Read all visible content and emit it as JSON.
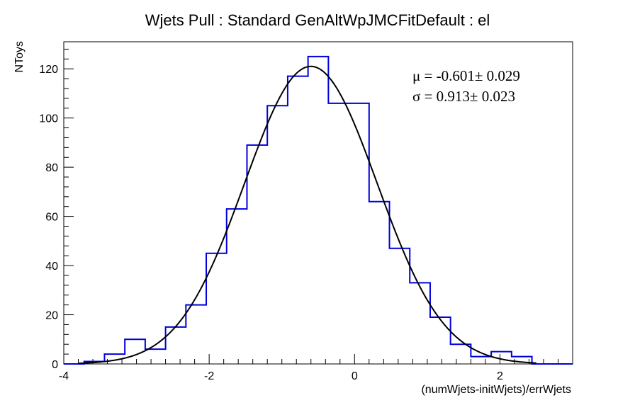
{
  "chart_data": {
    "type": "histogram",
    "title": "Wjets Pull : Standard GenAltWpJMCFitDefault : el",
    "xlabel": "(numWjets-initWjets)/errWjets",
    "ylabel": "NToys",
    "xlim": [
      -4,
      3
    ],
    "ylim": [
      0,
      131
    ],
    "x_ticks": [
      -4,
      -2,
      0,
      2
    ],
    "x_tick_labels": [
      "-4",
      "-2",
      "0",
      "2"
    ],
    "y_ticks": [
      0,
      20,
      40,
      60,
      80,
      100,
      120
    ],
    "y_tick_labels": [
      "0",
      "20",
      "40",
      "60",
      "80",
      "100",
      "120"
    ],
    "bin_edges": [
      -4.0,
      -3.72,
      -3.44,
      -3.16,
      -2.88,
      -2.6,
      -2.32,
      -2.04,
      -1.76,
      -1.48,
      -1.2,
      -0.92,
      -0.64,
      -0.36,
      -0.08,
      0.2,
      0.48,
      0.76,
      1.04,
      1.32,
      1.6,
      1.88,
      2.16,
      2.44,
      2.72,
      3.0
    ],
    "counts": [
      0,
      1,
      4,
      10,
      6,
      15,
      24,
      45,
      63,
      89,
      105,
      117,
      125,
      106,
      106,
      66,
      47,
      33,
      19,
      8,
      3,
      5,
      3,
      0,
      0
    ],
    "fit": {
      "mean": -0.601,
      "sigma": 0.913,
      "peak": 121,
      "x_range": [
        -3.8,
        2.5
      ]
    },
    "stats_lines": [
      "μ = -0.601± 0.029",
      "σ =  0.913± 0.023"
    ],
    "colors": {
      "histogram": "#0000dd",
      "fit": "#000000",
      "frame": "#000000",
      "background": "#ffffff"
    }
  }
}
